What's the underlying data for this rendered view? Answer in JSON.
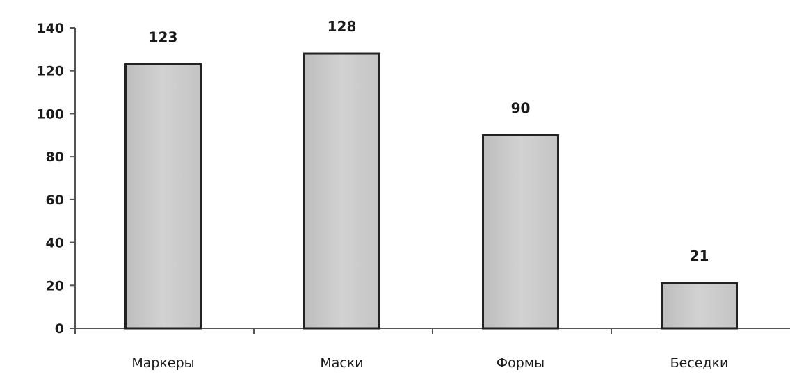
{
  "chart_data": {
    "type": "bar",
    "title": "",
    "xlabel": "",
    "ylabel": "",
    "categories": [
      "Маркеры",
      "Маски",
      "Формы",
      "Беседки"
    ],
    "values": [
      123,
      128,
      90,
      21
    ],
    "data_labels": [
      "123",
      "128",
      "90",
      "21"
    ],
    "ylim": [
      0,
      140
    ],
    "yticks": [
      0,
      20,
      40,
      60,
      80,
      100,
      120,
      140
    ],
    "ytick_labels": [
      "0",
      "20",
      "40",
      "60",
      "80",
      "100",
      "120",
      "140"
    ],
    "grid": false,
    "legend": "none",
    "bar_color": "#c8c8c8",
    "bar_border_color": "#222222",
    "axis_color": "#555555"
  }
}
